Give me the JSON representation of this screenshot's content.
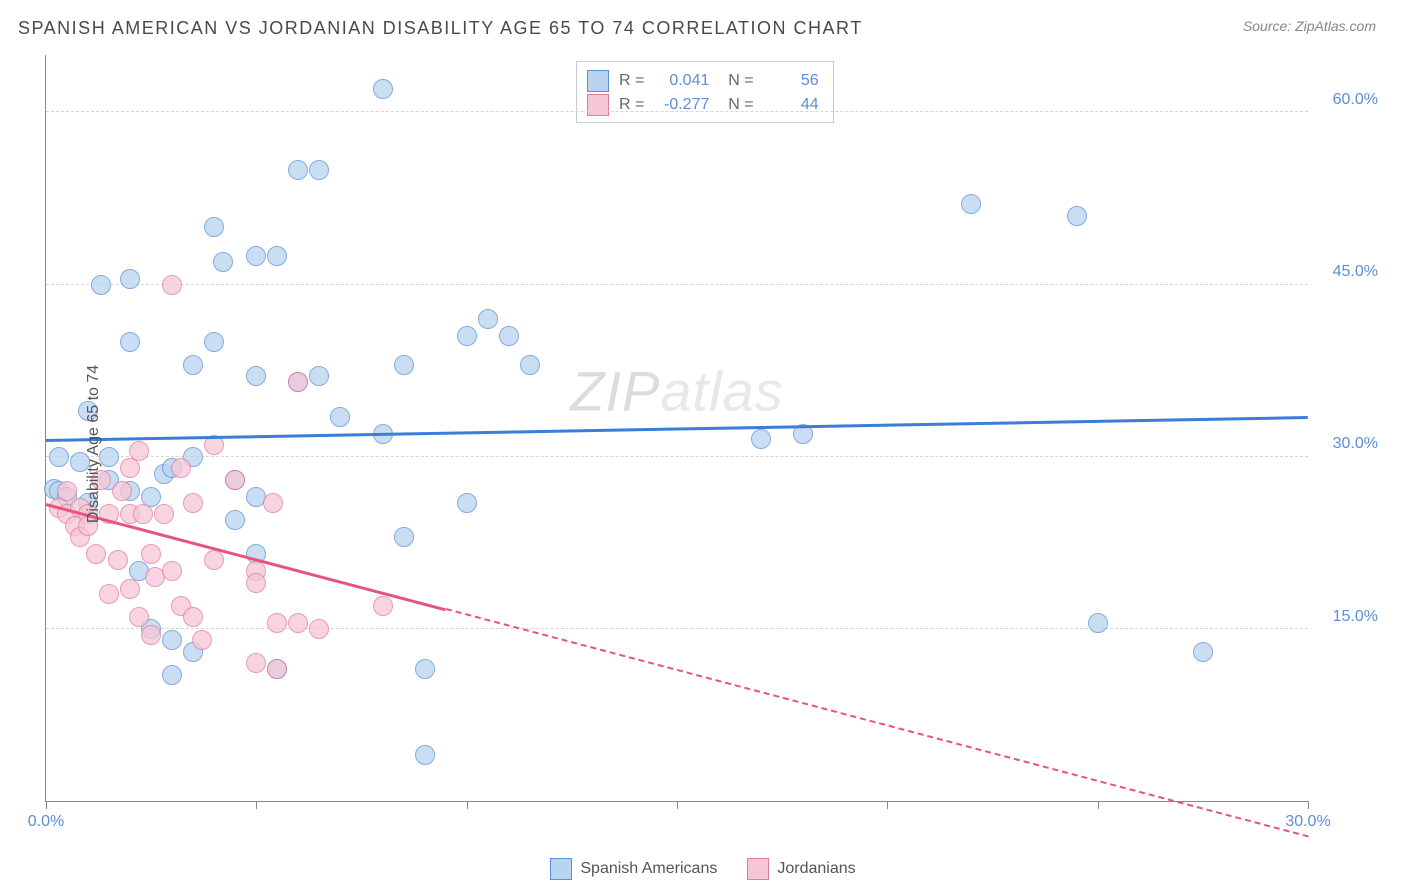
{
  "title": "SPANISH AMERICAN VS JORDANIAN DISABILITY AGE 65 TO 74 CORRELATION CHART",
  "source": "Source: ZipAtlas.com",
  "watermark": "ZIPatlas",
  "chart": {
    "type": "scatter",
    "ylabel": "Disability Age 65 to 74",
    "xlim": [
      0,
      30
    ],
    "ylim": [
      0,
      65
    ],
    "xticks": [
      0,
      5,
      10,
      15,
      20,
      25,
      30
    ],
    "xtick_labels": {
      "0": "0.0%",
      "30": "30.0%"
    },
    "yticks": [
      15,
      30,
      45,
      60
    ],
    "ytick_labels": [
      "15.0%",
      "30.0%",
      "45.0%",
      "60.0%"
    ],
    "grid_color": "#d5d5d5",
    "axis_color": "#888888",
    "background_color": "#ffffff",
    "label_fontsize": 16,
    "series": [
      {
        "name": "Spanish Americans",
        "fill": "#b9d4f0",
        "stroke": "#5b8fd6",
        "line_color": "#3b7dd8",
        "R": "0.041",
        "N": "56",
        "trend": {
          "x1": 0,
          "y1": 31.5,
          "x2": 30,
          "y2": 33.5,
          "solid_until": 30
        },
        "points": [
          [
            0.2,
            27.2
          ],
          [
            0.3,
            30
          ],
          [
            0.3,
            27
          ],
          [
            0.5,
            26.5
          ],
          [
            0.8,
            29.5
          ],
          [
            1,
            34
          ],
          [
            1,
            26
          ],
          [
            1.3,
            45
          ],
          [
            1.5,
            28
          ],
          [
            1.5,
            30
          ],
          [
            2,
            40
          ],
          [
            2,
            45.5
          ],
          [
            2,
            27
          ],
          [
            2.2,
            20
          ],
          [
            2.5,
            15
          ],
          [
            2.5,
            26.5
          ],
          [
            2.8,
            28.5
          ],
          [
            3,
            11
          ],
          [
            3,
            14
          ],
          [
            3,
            29
          ],
          [
            3.5,
            38
          ],
          [
            3.5,
            30
          ],
          [
            3.5,
            13
          ],
          [
            4,
            50
          ],
          [
            4,
            40
          ],
          [
            4.2,
            47
          ],
          [
            4.5,
            28
          ],
          [
            4.5,
            24.5
          ],
          [
            5,
            47.5
          ],
          [
            5,
            37
          ],
          [
            5,
            21.5
          ],
          [
            5,
            26.5
          ],
          [
            5.5,
            47.5
          ],
          [
            5.5,
            11.5
          ],
          [
            6,
            55
          ],
          [
            6,
            36.5
          ],
          [
            6.5,
            37
          ],
          [
            6.5,
            55
          ],
          [
            7,
            33.5
          ],
          [
            8,
            62
          ],
          [
            8,
            32
          ],
          [
            8.5,
            38
          ],
          [
            8.5,
            23
          ],
          [
            9,
            4
          ],
          [
            9,
            11.5
          ],
          [
            10,
            40.5
          ],
          [
            10,
            26
          ],
          [
            10.5,
            42
          ],
          [
            11,
            40.5
          ],
          [
            11.5,
            38
          ],
          [
            17,
            31.5
          ],
          [
            18,
            32
          ],
          [
            22,
            52
          ],
          [
            24.5,
            51
          ],
          [
            25,
            15.5
          ],
          [
            27.5,
            13
          ]
        ]
      },
      {
        "name": "Jordanians",
        "fill": "#f5c6d5",
        "stroke": "#e47a9c",
        "line_color": "#e8537e",
        "R": "-0.277",
        "N": "44",
        "trend": {
          "x1": 0,
          "y1": 26,
          "x2": 30,
          "y2": -3,
          "solid_until": 9.5
        },
        "points": [
          [
            0.3,
            25.5
          ],
          [
            0.5,
            25
          ],
          [
            0.5,
            27
          ],
          [
            0.7,
            24
          ],
          [
            0.8,
            23
          ],
          [
            0.8,
            25.5
          ],
          [
            1,
            25
          ],
          [
            1,
            24
          ],
          [
            1.2,
            21.5
          ],
          [
            1.3,
            28
          ],
          [
            1.5,
            25
          ],
          [
            1.5,
            18
          ],
          [
            1.7,
            21
          ],
          [
            1.8,
            27
          ],
          [
            2,
            29
          ],
          [
            2,
            18.5
          ],
          [
            2,
            25
          ],
          [
            2.2,
            16
          ],
          [
            2.2,
            30.5
          ],
          [
            2.3,
            25
          ],
          [
            2.5,
            14.5
          ],
          [
            2.5,
            21.5
          ],
          [
            2.6,
            19.5
          ],
          [
            2.8,
            25
          ],
          [
            3,
            45
          ],
          [
            3,
            20
          ],
          [
            3.2,
            17
          ],
          [
            3.2,
            29
          ],
          [
            3.5,
            26
          ],
          [
            3.5,
            16
          ],
          [
            3.7,
            14
          ],
          [
            4,
            31
          ],
          [
            4,
            21
          ],
          [
            4.5,
            28
          ],
          [
            5,
            20
          ],
          [
            5,
            19
          ],
          [
            5,
            12
          ],
          [
            5.4,
            26
          ],
          [
            5.5,
            15.5
          ],
          [
            5.5,
            11.5
          ],
          [
            6,
            36.5
          ],
          [
            6,
            15.5
          ],
          [
            6.5,
            15
          ],
          [
            8,
            17
          ]
        ]
      }
    ]
  },
  "legend": {
    "series1": "Spanish Americans",
    "series2": "Jordanians"
  }
}
